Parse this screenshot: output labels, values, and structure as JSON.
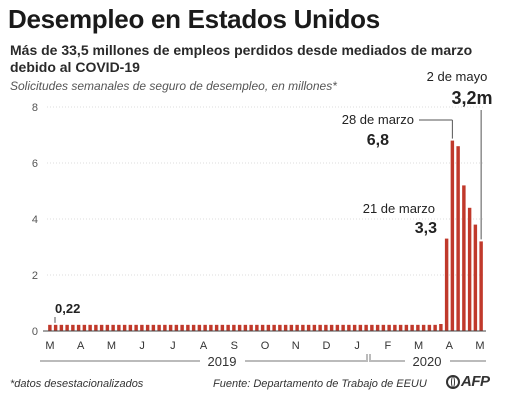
{
  "title": "Desempleo en Estados Unidos",
  "subtitle": "Más de 33,5 millones de empleos perdidos desde mediados de marzo debido al COVID-19",
  "caption": "Solicitudes semanales de seguro de desempleo, en millones*",
  "footnote": "*datos desestacionalizados",
  "source": "Fuente: Departamento de Trabajo de EEUU",
  "logo_text": "AFP",
  "colors": {
    "bar": "#c0392b",
    "axis": "#444444",
    "grid": "#dddddd"
  },
  "chart_data": {
    "type": "bar",
    "ylim": [
      0,
      8
    ],
    "yticks": [
      "0",
      "2",
      "4",
      "6",
      "8"
    ],
    "month_labels": [
      "M",
      "A",
      "M",
      "J",
      "J",
      "A",
      "S",
      "O",
      "N",
      "D",
      "J",
      "F",
      "M",
      "A",
      "M"
    ],
    "year_labels": [
      "2019",
      "2020"
    ],
    "values": [
      0.22,
      0.22,
      0.22,
      0.22,
      0.22,
      0.22,
      0.22,
      0.22,
      0.22,
      0.22,
      0.22,
      0.22,
      0.22,
      0.22,
      0.22,
      0.22,
      0.22,
      0.22,
      0.22,
      0.22,
      0.22,
      0.22,
      0.22,
      0.22,
      0.22,
      0.22,
      0.22,
      0.22,
      0.22,
      0.22,
      0.22,
      0.22,
      0.22,
      0.22,
      0.22,
      0.22,
      0.22,
      0.22,
      0.22,
      0.22,
      0.22,
      0.22,
      0.22,
      0.22,
      0.22,
      0.22,
      0.22,
      0.22,
      0.22,
      0.22,
      0.22,
      0.22,
      0.22,
      0.22,
      0.22,
      0.22,
      0.22,
      0.22,
      0.22,
      0.22,
      0.22,
      0.22,
      0.22,
      0.22,
      0.22,
      0.22,
      0.22,
      0.22,
      0.25,
      3.3,
      6.8,
      6.6,
      5.2,
      4.4,
      3.8,
      3.2
    ],
    "annotations": [
      {
        "label": "0,22",
        "date": ""
      },
      {
        "label": "3,3",
        "date": "21 de marzo"
      },
      {
        "label": "6,8",
        "date": "28 de marzo"
      },
      {
        "label": "3,2m",
        "date": "2 de mayo"
      }
    ]
  }
}
